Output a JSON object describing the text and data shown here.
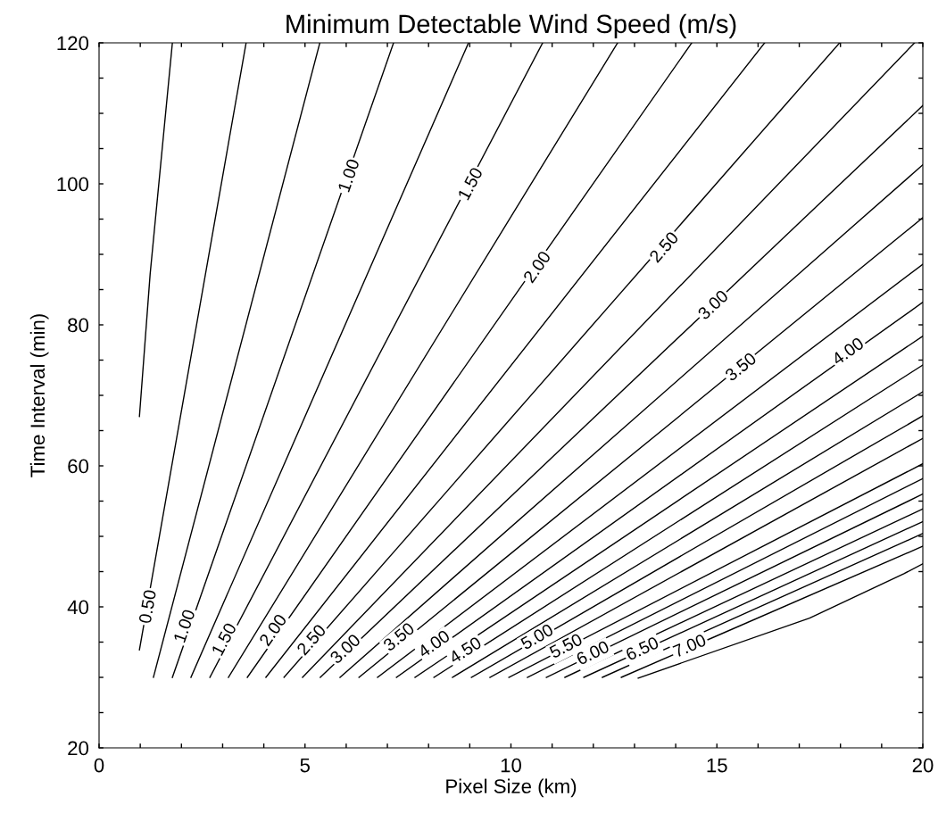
{
  "chart_data": {
    "type": "line",
    "title": "Minimum Detectable Wind Speed (m/s)",
    "xlabel": "Pixel Size (km)",
    "ylabel": "Time Interval (min)",
    "xlim": [
      0,
      20
    ],
    "ylim": [
      20,
      120
    ],
    "xticks": [
      0,
      {
        "value": 1,
        "label": null
      },
      {
        "value": 2,
        "label": null
      },
      {
        "value": 3,
        "label": null
      },
      {
        "value": 4,
        "label": null
      },
      5,
      {
        "value": 6,
        "label": null
      },
      {
        "value": 7,
        "label": null
      },
      {
        "value": 8,
        "label": null
      },
      {
        "value": 9,
        "label": null
      },
      10,
      {
        "value": 11,
        "label": null
      },
      {
        "value": 12,
        "label": null
      },
      {
        "value": 13,
        "label": null
      },
      {
        "value": 14,
        "label": null
      },
      15,
      {
        "value": 16,
        "label": null
      },
      {
        "value": 17,
        "label": null
      },
      {
        "value": 18,
        "label": null
      },
      {
        "value": 19,
        "label": null
      },
      20
    ],
    "yticks": [
      20,
      {
        "value": 25,
        "label": null
      },
      {
        "value": 30,
        "label": null
      },
      {
        "value": 35,
        "label": null
      },
      40,
      {
        "value": 45,
        "label": null
      },
      {
        "value": 50,
        "label": null
      },
      {
        "value": 55,
        "label": null
      },
      60,
      {
        "value": 65,
        "label": null
      },
      {
        "value": 70,
        "label": null
      },
      {
        "value": 75,
        "label": null
      },
      80,
      {
        "value": 85,
        "label": null
      },
      {
        "value": 90,
        "label": null
      },
      {
        "value": 95,
        "label": null
      },
      100,
      {
        "value": 105,
        "label": null
      },
      {
        "value": 110,
        "label": null
      },
      {
        "value": 115,
        "label": null
      },
      120
    ],
    "grid": false,
    "marker": "none",
    "line_style": "solid",
    "series": [
      {
        "color": "#000000",
        "x": [
          0.98,
          1.24,
          1.78
        ],
        "values": [
          67.0,
          87.2,
          120
        ]
      },
      {
        "color": "#000000",
        "x": [
          0.98,
          3.57
        ],
        "values": [
          33.9,
          120
        ]
      },
      {
        "color": "#000000",
        "x": [
          1.32,
          5.36
        ],
        "values": [
          30,
          120
        ]
      },
      {
        "color": "#000000",
        "x": [
          1.78,
          7.15
        ],
        "values": [
          30,
          120
        ]
      },
      {
        "color": "#000000",
        "x": [
          2.23,
          8.97
        ],
        "values": [
          30,
          120
        ]
      },
      {
        "color": "#000000",
        "x": [
          2.69,
          10.77
        ],
        "values": [
          30,
          120
        ]
      },
      {
        "color": "#000000",
        "x": [
          3.14,
          12.59
        ],
        "values": [
          30,
          120
        ]
      },
      {
        "color": "#000000",
        "x": [
          3.6,
          14.39
        ],
        "values": [
          30,
          120
        ]
      },
      {
        "color": "#000000",
        "x": [
          4.05,
          16.16
        ],
        "values": [
          30,
          120
        ]
      },
      {
        "color": "#000000",
        "x": [
          4.49,
          17.98
        ],
        "values": [
          30,
          120
        ]
      },
      {
        "color": "#000000",
        "x": [
          4.94,
          19.8
        ],
        "values": [
          30,
          120
        ]
      },
      {
        "color": "#000000",
        "x": [
          5.37,
          20
        ],
        "values": [
          30,
          111.1
        ]
      },
      {
        "color": "#000000",
        "x": [
          5.85,
          20
        ],
        "values": [
          30,
          102.7
        ]
      },
      {
        "color": "#000000",
        "x": [
          6.31,
          20
        ],
        "values": [
          30,
          95.2
        ]
      },
      {
        "color": "#000000",
        "x": [
          6.76,
          20
        ],
        "values": [
          30,
          88.6
        ]
      },
      {
        "color": "#000000",
        "x": [
          7.22,
          20
        ],
        "values": [
          30,
          83.2
        ]
      },
      {
        "color": "#000000",
        "x": [
          7.67,
          20
        ],
        "values": [
          30,
          78.4
        ]
      },
      {
        "color": "#000000",
        "x": [
          8.13,
          20
        ],
        "values": [
          30,
          74.3
        ]
      },
      {
        "color": "#000000",
        "x": [
          8.58,
          20
        ],
        "values": [
          30,
          70.5
        ]
      },
      {
        "color": "#000000",
        "x": [
          9.04,
          20
        ],
        "values": [
          30,
          67.1
        ]
      },
      {
        "color": "#000000",
        "x": [
          9.49,
          20
        ],
        "values": [
          30,
          63.9
        ]
      },
      {
        "color": "#000000",
        "x": [
          9.95,
          20
        ],
        "values": [
          30,
          60.3
        ]
      },
      {
        "color": "#000000",
        "x": [
          10.4,
          20
        ],
        "values": [
          30,
          58.2
        ]
      },
      {
        "color": "#000000",
        "x": [
          10.86,
          20
        ],
        "values": [
          30,
          56.0
        ]
      },
      {
        "color": "#000000",
        "x": [
          11.31,
          20
        ],
        "values": [
          30,
          53.9
        ]
      },
      {
        "color": "#000000",
        "x": [
          11.77,
          20
        ],
        "values": [
          30,
          52.1
        ]
      },
      {
        "color": "#000000",
        "x": [
          12.22,
          20
        ],
        "values": [
          30,
          50.4
        ]
      },
      {
        "color": "#000000",
        "x": [
          12.68,
          20
        ],
        "values": [
          30,
          48.6
        ]
      },
      {
        "color": "#000000",
        "x": [
          13.09,
          17.25,
          19.54,
          20
        ],
        "values": [
          29.9,
          38.4,
          44.7,
          46.1
        ]
      }
    ],
    "annotations": [
      {
        "text": "0.50",
        "x": 1.21,
        "y": 40.0
      },
      {
        "text": "1.00",
        "x": 2.1,
        "y": 37.2
      },
      {
        "text": "1.00",
        "x": 6.09,
        "y": 101.1
      },
      {
        "text": "1.50",
        "x": 3.06,
        "y": 35.3
      },
      {
        "text": "1.50",
        "x": 9.04,
        "y": 99.9
      },
      {
        "text": "2.00",
        "x": 4.25,
        "y": 36.6
      },
      {
        "text": "2.00",
        "x": 10.66,
        "y": 88.1
      },
      {
        "text": "2.50",
        "x": 5.18,
        "y": 35.2
      },
      {
        "text": "2.50",
        "x": 13.74,
        "y": 90.9
      },
      {
        "text": "3.00",
        "x": 6.0,
        "y": 33.9
      },
      {
        "text": "3.00",
        "x": 14.93,
        "y": 82.7
      },
      {
        "text": "3.50",
        "x": 7.3,
        "y": 35.6
      },
      {
        "text": "3.50",
        "x": 15.6,
        "y": 73.9
      },
      {
        "text": "4.00",
        "x": 8.15,
        "y": 34.6
      },
      {
        "text": "4.00",
        "x": 18.2,
        "y": 76.1
      },
      {
        "text": "4.50",
        "x": 8.91,
        "y": 33.7
      },
      {
        "text": "5.00",
        "x": 10.65,
        "y": 35.6
      },
      {
        "text": "5.50",
        "x": 11.35,
        "y": 34.3
      },
      {
        "text": "6.00",
        "x": 12.0,
        "y": 33.3
      },
      {
        "text": "6.50",
        "x": 13.2,
        "y": 33.9
      },
      {
        "text": "7.00",
        "x": 14.35,
        "y": 34.3
      }
    ]
  }
}
